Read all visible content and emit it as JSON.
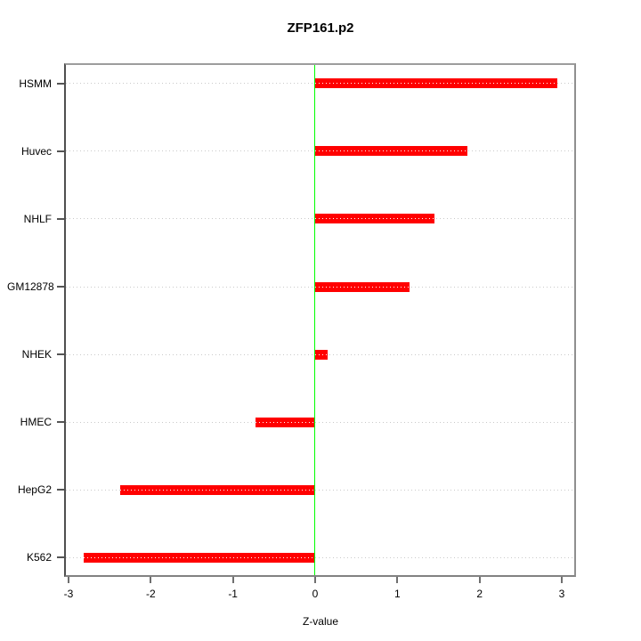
{
  "chart_data": {
    "type": "bar",
    "orientation": "horizontal",
    "title": "ZFP161.p2",
    "xlabel": "Z-value",
    "categories": [
      "HSMM",
      "Huvec",
      "NHLF",
      "GM12878",
      "NHEK",
      "HMEC",
      "HepG2",
      "K562"
    ],
    "values": [
      2.95,
      1.85,
      1.45,
      1.15,
      0.15,
      -0.73,
      -2.37,
      -2.82
    ],
    "xlim": [
      -3.11,
      3.17
    ],
    "x_ticks": [
      -3,
      -2,
      -1,
      0,
      1,
      2,
      3
    ],
    "bar_color": "#ff0000",
    "zero_line_color": "#00ff00",
    "gridline_style": "dotted",
    "gridline_color": "#c9c9c9",
    "legend": "none"
  }
}
